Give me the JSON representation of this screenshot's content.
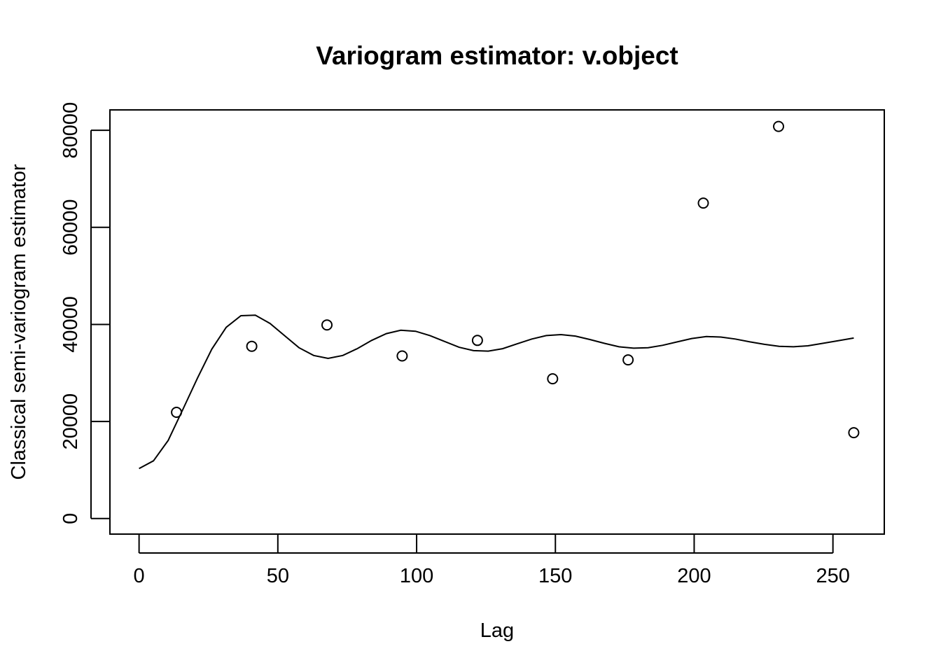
{
  "chart_data": {
    "type": "scatter",
    "title": "Variogram estimator: v.object",
    "xlabel": "Lag",
    "ylabel": "Classical semi-variogram estimator",
    "xlim": [
      -10.5,
      268.5
    ],
    "ylim": [
      -3200,
      84200
    ],
    "x_ticks": [
      0,
      50,
      100,
      150,
      200,
      250
    ],
    "y_ticks": [
      0,
      20000,
      40000,
      60000,
      80000
    ],
    "grid": false,
    "legend": "none",
    "colors": {
      "points": "#000000",
      "line": "#000000",
      "frame": "#000000",
      "background": "#ffffff"
    },
    "series": [
      {
        "kind": "points",
        "marker": "open-circle",
        "x": [
          13.5,
          40.6,
          67.7,
          94.8,
          121.9,
          149.0,
          176.2,
          203.3,
          230.4,
          257.5
        ],
        "y": [
          21900,
          35500,
          39900,
          33500,
          36700,
          28800,
          32700,
          65000,
          80800,
          17700
        ]
      },
      {
        "kind": "line",
        "x": [
          0,
          5.2,
          10.5,
          15.7,
          21,
          26.2,
          31.4,
          36.7,
          41.9,
          47.2,
          52.4,
          57.6,
          62.9,
          68.1,
          73.4,
          78.6,
          83.8,
          89.1,
          94.3,
          99.6,
          104.8,
          110,
          115.3,
          120.5,
          125.8,
          131,
          136.2,
          141.5,
          146.7,
          152,
          157.2,
          162.4,
          167.7,
          172.9,
          178.2,
          183.4,
          188.6,
          193.9,
          199.1,
          204.4,
          209.6,
          214.8,
          220.1,
          225.3,
          230.6,
          235.8,
          241,
          246.3,
          251.5,
          257.5
        ],
        "y": [
          10300,
          11900,
          16100,
          22400,
          28900,
          34900,
          39400,
          41800,
          41900,
          40200,
          37700,
          35200,
          33600,
          33000,
          33600,
          35000,
          36700,
          38100,
          38800,
          38600,
          37700,
          36500,
          35300,
          34600,
          34500,
          35000,
          36000,
          37000,
          37700,
          37900,
          37600,
          36900,
          36100,
          35400,
          35100,
          35200,
          35700,
          36400,
          37100,
          37500,
          37400,
          37000,
          36400,
          35900,
          35500,
          35400,
          35600,
          36100,
          36600,
          37200
        ]
      }
    ]
  }
}
